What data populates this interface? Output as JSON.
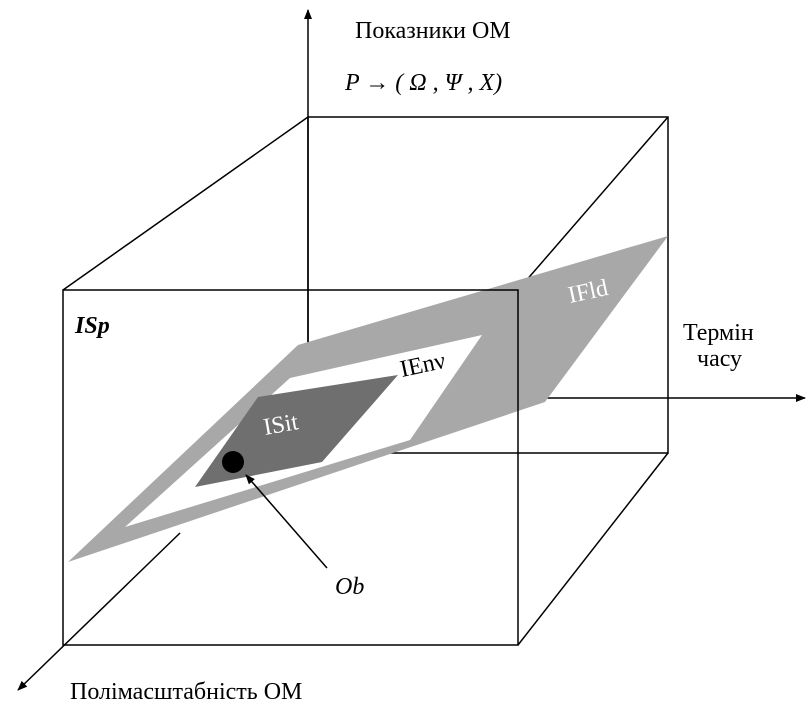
{
  "axes": {
    "vertical": "Показники  ОМ",
    "formula": "P → ( Ω ,  Ψ , X)",
    "horizontal_line1": "Термін",
    "horizontal_line2": "часу",
    "depth": "Полімасштабність  ОМ"
  },
  "regions": {
    "space": "ISp",
    "field": "IFld",
    "environment": "IEnν",
    "situation": "ISit",
    "object": "Ob"
  }
}
